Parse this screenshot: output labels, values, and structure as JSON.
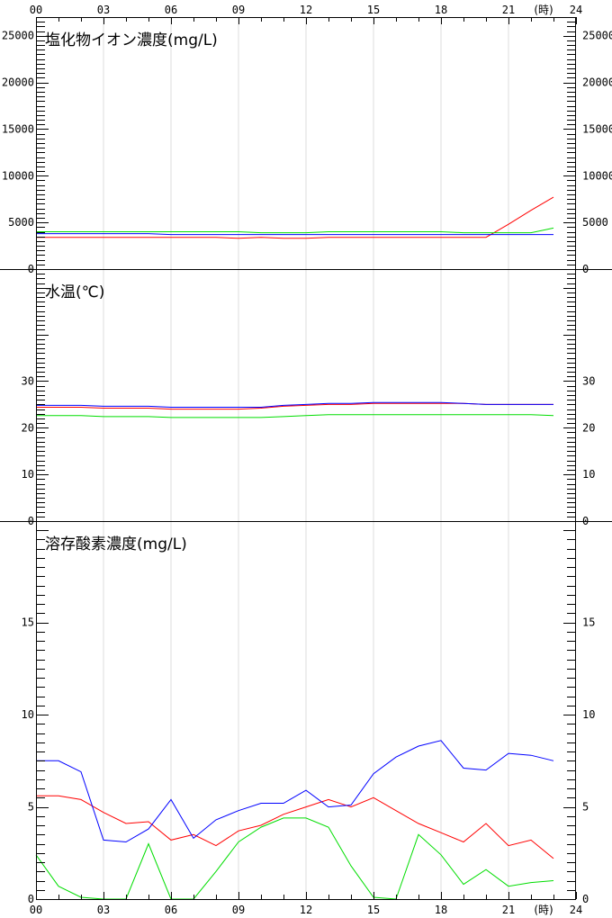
{
  "chart_data": [
    {
      "type": "line",
      "title": "塩化物イオン濃度(mg/L)",
      "ylim": [
        0,
        27000
      ],
      "y_ticks": [
        0,
        5000,
        10000,
        15000,
        20000,
        25000
      ],
      "y_tick_labels": [
        "0",
        "5000",
        "10000",
        "15000",
        "20000",
        "25000"
      ],
      "x": [
        0,
        1,
        2,
        3,
        4,
        5,
        6,
        7,
        8,
        9,
        10,
        11,
        12,
        13,
        14,
        15,
        16,
        17,
        18,
        19,
        20,
        21,
        22,
        23
      ],
      "xlim": [
        0,
        24
      ],
      "grid": true,
      "series": [
        {
          "color": "#ff0000",
          "values": [
            3400,
            3400,
            3400,
            3400,
            3400,
            3400,
            3400,
            3400,
            3400,
            3300,
            3400,
            3300,
            3300,
            3400,
            3400,
            3400,
            3400,
            3400,
            3400,
            3400,
            3400,
            4800,
            6300,
            7700
          ]
        },
        {
          "color": "#0000ff",
          "values": [
            3800,
            3800,
            3800,
            3800,
            3800,
            3800,
            3700,
            3700,
            3700,
            3700,
            3700,
            3700,
            3700,
            3700,
            3700,
            3700,
            3700,
            3700,
            3700,
            3700,
            3700,
            3700,
            3700,
            3700
          ]
        },
        {
          "color": "#00dd00",
          "values": [
            4000,
            4000,
            4000,
            4000,
            4000,
            4000,
            4000,
            4000,
            4000,
            4000,
            3900,
            3900,
            3900,
            4000,
            4000,
            4000,
            4000,
            4000,
            4000,
            3900,
            3900,
            3900,
            3900,
            4400
          ]
        }
      ]
    },
    {
      "type": "line",
      "title": "水温(℃)",
      "ylim": [
        0,
        54
      ],
      "y_ticks": [
        0,
        10,
        20,
        30
      ],
      "y_tick_labels": [
        "0",
        "10",
        "20",
        "30"
      ],
      "x": [
        0,
        1,
        2,
        3,
        4,
        5,
        6,
        7,
        8,
        9,
        10,
        11,
        12,
        13,
        14,
        15,
        16,
        17,
        18,
        19,
        20,
        21,
        22,
        23
      ],
      "xlim": [
        0,
        24
      ],
      "grid": true,
      "series": [
        {
          "color": "#ff0000",
          "values": [
            24.4,
            24.4,
            24.4,
            24.2,
            24.2,
            24.2,
            24.0,
            24.0,
            24.0,
            24.0,
            24.2,
            24.6,
            24.8,
            25.0,
            25.0,
            25.2,
            25.2,
            25.2,
            25.2,
            25.2,
            25.0,
            25.0,
            25.0,
            25.0
          ]
        },
        {
          "color": "#0000ff",
          "values": [
            24.8,
            24.8,
            24.8,
            24.6,
            24.6,
            24.6,
            24.4,
            24.4,
            24.4,
            24.4,
            24.4,
            24.8,
            25.0,
            25.2,
            25.2,
            25.4,
            25.4,
            25.4,
            25.4,
            25.2,
            25.0,
            25.0,
            25.0,
            25.0
          ]
        },
        {
          "color": "#00dd00",
          "values": [
            22.6,
            22.6,
            22.6,
            22.4,
            22.4,
            22.4,
            22.2,
            22.2,
            22.2,
            22.2,
            22.2,
            22.4,
            22.6,
            22.8,
            22.8,
            22.8,
            22.8,
            22.8,
            22.8,
            22.8,
            22.8,
            22.8,
            22.8,
            22.6
          ]
        }
      ]
    },
    {
      "type": "line",
      "title": "溶存酸素濃度(mg/L)",
      "ylim": [
        0,
        20.5
      ],
      "y_ticks": [
        0,
        5,
        10,
        15
      ],
      "y_tick_labels": [
        "0",
        "5",
        "10",
        "15"
      ],
      "x": [
        0,
        1,
        2,
        3,
        4,
        5,
        6,
        7,
        8,
        9,
        10,
        11,
        12,
        13,
        14,
        15,
        16,
        17,
        18,
        19,
        20,
        21,
        22,
        23
      ],
      "xlim": [
        0,
        24
      ],
      "grid": true,
      "series": [
        {
          "color": "#ff0000",
          "values": [
            5.6,
            5.6,
            5.4,
            4.7,
            4.1,
            4.2,
            3.2,
            3.5,
            2.9,
            3.7,
            4.0,
            4.6,
            5.0,
            5.4,
            5.0,
            5.5,
            4.8,
            4.1,
            3.6,
            3.1,
            4.1,
            2.9,
            3.2,
            2.2
          ]
        },
        {
          "color": "#0000ff",
          "values": [
            7.5,
            7.5,
            6.9,
            3.2,
            3.1,
            3.8,
            5.4,
            3.3,
            4.3,
            4.8,
            5.2,
            5.2,
            5.9,
            5.0,
            5.1,
            6.8,
            7.7,
            8.3,
            8.6,
            7.1,
            7.0,
            7.9,
            7.8,
            7.5
          ]
        },
        {
          "color": "#00dd00",
          "values": [
            2.4,
            0.7,
            0.1,
            0.0,
            0.0,
            3.0,
            0.0,
            0.0,
            1.5,
            3.1,
            3.9,
            4.4,
            4.4,
            3.9,
            1.8,
            0.1,
            0.0,
            3.5,
            2.4,
            0.8,
            1.6,
            0.7,
            0.9,
            1.0
          ]
        }
      ]
    }
  ],
  "x_axis": {
    "tick_labels": [
      "00",
      "03",
      "06",
      "09",
      "12",
      "15",
      "18",
      "21",
      "24"
    ],
    "unit": "(時)"
  }
}
